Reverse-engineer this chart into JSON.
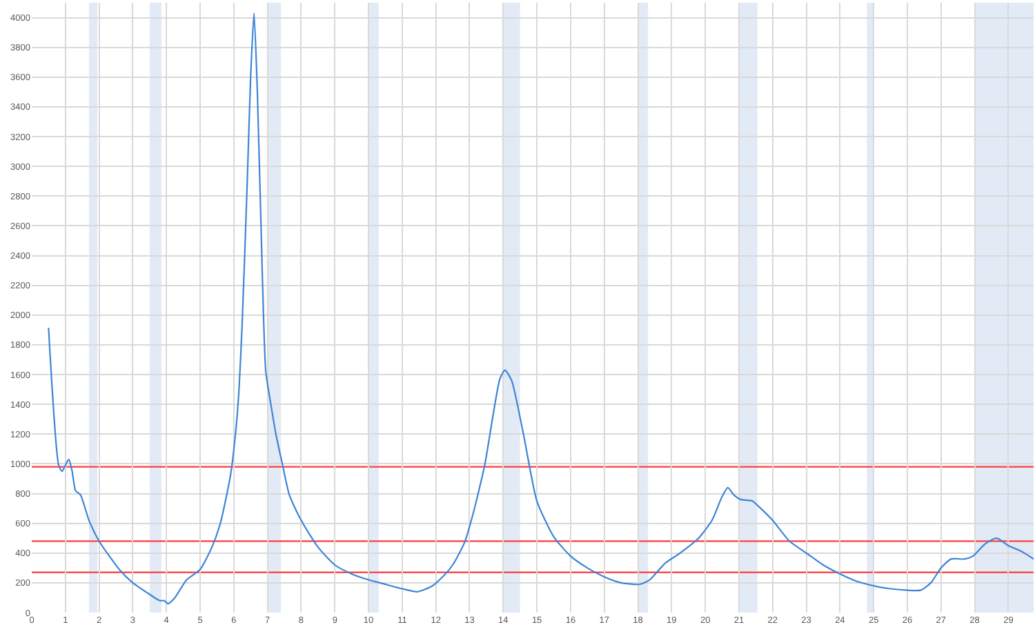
{
  "chart_data": {
    "type": "line",
    "x": [
      0.5,
      0.8,
      0.9,
      1.0,
      1.1,
      1.2,
      1.3,
      1.45,
      1.7,
      2.0,
      2.6,
      3.0,
      3.45,
      3.8,
      3.93,
      4.05,
      4.25,
      4.6,
      5.0,
      5.35,
      5.6,
      5.9,
      6.05,
      6.15,
      6.25,
      6.4,
      6.5,
      6.6,
      6.7,
      6.85,
      6.95,
      7.1,
      7.25,
      7.45,
      7.65,
      8.0,
      8.5,
      9.0,
      9.5,
      10.0,
      10.5,
      11.0,
      11.45,
      11.9,
      12.2,
      12.5,
      12.85,
      13.1,
      13.45,
      13.7,
      13.9,
      14.05,
      14.25,
      14.6,
      15.0,
      15.5,
      16.0,
      16.5,
      17.0,
      17.5,
      18.05,
      18.35,
      18.8,
      19.25,
      19.8,
      20.2,
      20.5,
      20.67,
      20.85,
      21.05,
      21.4,
      21.6,
      22.0,
      22.5,
      23.0,
      23.5,
      24.0,
      24.5,
      25.0,
      25.5,
      26.0,
      26.4,
      26.7,
      27.0,
      27.3,
      27.7,
      27.95,
      28.3,
      28.65,
      29.0,
      29.4,
      29.75
    ],
    "series": [
      {
        "color": "#3d84d6",
        "values": [
          1910,
          990,
          950,
          990,
          1030,
          950,
          820,
          790,
          620,
          480,
          290,
          200,
          130,
          80,
          80,
          60,
          100,
          220,
          290,
          440,
          600,
          920,
          1200,
          1480,
          1950,
          2900,
          3600,
          4030,
          3500,
          2250,
          1620,
          1400,
          1200,
          990,
          790,
          620,
          440,
          320,
          260,
          220,
          190,
          160,
          140,
          180,
          240,
          320,
          470,
          660,
          990,
          1330,
          1570,
          1630,
          1560,
          1200,
          750,
          510,
          380,
          300,
          240,
          200,
          190,
          220,
          330,
          400,
          500,
          620,
          780,
          840,
          790,
          760,
          750,
          710,
          620,
          480,
          400,
          320,
          260,
          210,
          180,
          160,
          150,
          150,
          200,
          300,
          360,
          360,
          380,
          460,
          500,
          450,
          410,
          360
        ]
      }
    ],
    "xlim": [
      0,
      29.75
    ],
    "xticks": [
      0,
      1,
      2,
      3,
      4,
      5,
      6,
      7,
      8,
      9,
      10,
      11,
      12,
      13,
      14,
      15,
      16,
      17,
      18,
      19,
      20,
      21,
      22,
      23,
      24,
      25,
      26,
      27,
      28,
      29
    ],
    "ylim": [
      0,
      4100
    ],
    "yticks": [
      0,
      200,
      400,
      600,
      800,
      1000,
      1200,
      1400,
      1600,
      1800,
      2000,
      2200,
      2400,
      2600,
      2800,
      3000,
      3200,
      3400,
      3600,
      3800,
      4000
    ],
    "grid": true,
    "ref_lines": [
      {
        "axis": "y",
        "value": 980,
        "color": "#ff4d4d"
      },
      {
        "axis": "y",
        "value": 480,
        "color": "#ff4d4d"
      },
      {
        "axis": "y",
        "value": 270,
        "color": "#ff4d4d"
      }
    ],
    "bands": [
      {
        "axis": "x",
        "from": 1.7,
        "to": 1.95,
        "color": "#e2eaf6"
      },
      {
        "axis": "x",
        "from": 3.5,
        "to": 3.85,
        "color": "#e2eaf6"
      },
      {
        "axis": "x",
        "from": 7.0,
        "to": 7.4,
        "color": "#e2eaf6"
      },
      {
        "axis": "x",
        "from": 10.0,
        "to": 10.3,
        "color": "#e2eaf6"
      },
      {
        "axis": "x",
        "from": 14.0,
        "to": 14.5,
        "color": "#e2eaf6"
      },
      {
        "axis": "x",
        "from": 18.0,
        "to": 18.3,
        "color": "#e2eaf6"
      },
      {
        "axis": "x",
        "from": 21.0,
        "to": 21.55,
        "color": "#e2eaf6"
      },
      {
        "axis": "x",
        "from": 24.8,
        "to": 25.0,
        "color": "#e2eaf6"
      },
      {
        "axis": "x",
        "from": 28.0,
        "to": 29.75,
        "color": "#e2eaf6"
      }
    ]
  }
}
